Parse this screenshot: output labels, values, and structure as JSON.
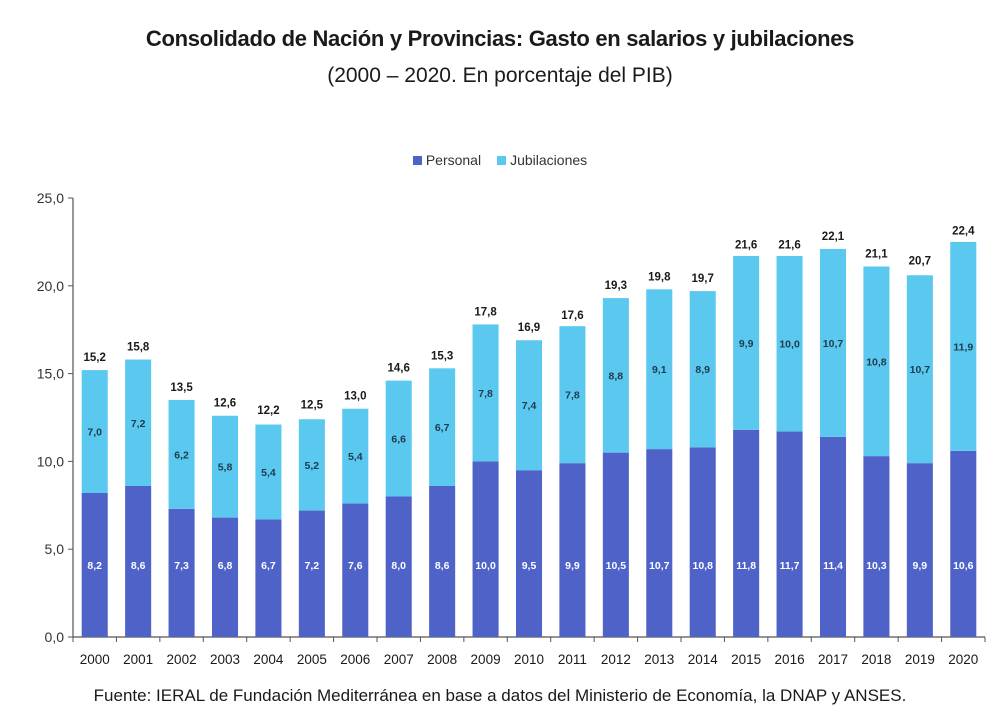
{
  "chart_data": {
    "type": "bar",
    "stacked": true,
    "title": "Consolidado de Nación y Provincias: Gasto en salarios y jubilaciones",
    "subtitle": "(2000 – 2020. En porcentaje del PIB)",
    "xlabel": "",
    "ylabel": "",
    "ylim": [
      0,
      25
    ],
    "yticks": [
      0,
      5,
      10,
      15,
      20,
      25
    ],
    "ytick_labels": [
      "0,0",
      "5,0",
      "10,0",
      "15,0",
      "20,0",
      "25,0"
    ],
    "grid": false,
    "legend_position": "top-center",
    "categories": [
      "2000",
      "2001",
      "2002",
      "2003",
      "2004",
      "2005",
      "2006",
      "2007",
      "2008",
      "2009",
      "2010",
      "2011",
      "2012",
      "2013",
      "2014",
      "2015",
      "2016",
      "2017",
      "2018",
      "2019",
      "2020"
    ],
    "series": [
      {
        "name": "Personal",
        "color": "#4F62C8",
        "label_color": "#ffffff",
        "values": [
          8.2,
          8.6,
          7.3,
          6.8,
          6.7,
          7.2,
          7.6,
          8.0,
          8.6,
          10.0,
          9.5,
          9.9,
          10.5,
          10.7,
          10.8,
          11.8,
          11.7,
          11.4,
          10.3,
          9.9,
          10.6
        ],
        "labels": [
          "8,2",
          "8,6",
          "7,3",
          "6,8",
          "6,7",
          "7,2",
          "7,6",
          "8,0",
          "8,6",
          "10,0",
          "9,5",
          "9,9",
          "10,5",
          "10,7",
          "10,8",
          "11,8",
          "11,7",
          "11,4",
          "10,3",
          "9,9",
          "10,6"
        ]
      },
      {
        "name": "Jubilaciones",
        "color": "#5BC8F0",
        "label_color": "#1f3b4d",
        "values": [
          7.0,
          7.2,
          6.2,
          5.8,
          5.4,
          5.2,
          5.4,
          6.6,
          6.7,
          7.8,
          7.4,
          7.8,
          8.8,
          9.1,
          8.9,
          9.9,
          10.0,
          10.7,
          10.8,
          10.7,
          11.9
        ],
        "labels": [
          "7,0",
          "7,2",
          "6,2",
          "5,8",
          "5,4",
          "5,2",
          "5,4",
          "6,6",
          "6,7",
          "7,8",
          "7,4",
          "7,8",
          "8,8",
          "9,1",
          "8,9",
          "9,9",
          "10,0",
          "10,7",
          "10,8",
          "10,7",
          "11,9"
        ]
      }
    ],
    "totals": [
      15.2,
      15.8,
      13.5,
      12.6,
      12.2,
      12.5,
      13.0,
      14.6,
      15.3,
      17.8,
      16.9,
      17.6,
      19.3,
      19.8,
      19.7,
      21.6,
      21.6,
      22.1,
      21.1,
      20.7,
      22.4
    ],
    "total_labels": [
      "15,2",
      "15,8",
      "13,5",
      "12,6",
      "12,2",
      "12,5",
      "13,0",
      "14,6",
      "15,3",
      "17,8",
      "16,9",
      "17,6",
      "19,3",
      "19,8",
      "19,7",
      "21,6",
      "21,6",
      "22,1",
      "21,1",
      "20,7",
      "22,4"
    ],
    "source": "Fuente: IERAL de Fundación Mediterránea en base a datos del Ministerio de Economía, la DNAP y ANSES."
  }
}
